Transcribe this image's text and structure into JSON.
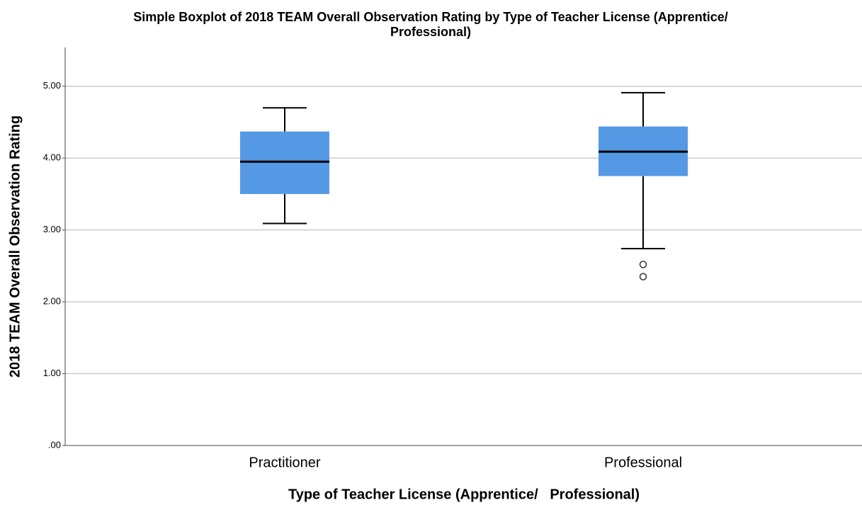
{
  "chart_data": {
    "type": "boxplot",
    "title": [
      "Simple Boxplot of 2018 TEAM Overall Observation Rating by Type of Teacher License (Apprentice/",
      "Professional)"
    ],
    "x_label": "Type of Teacher License (Apprentice/   Professional)",
    "y_label": "2018 TEAM Overall Observation Rating",
    "categories": [
      "Practitioner",
      "Professional"
    ],
    "boxes": [
      {
        "min": 3.09,
        "q1": 3.5,
        "median": 3.95,
        "q3": 4.37,
        "max": 4.7,
        "outliers": []
      },
      {
        "min": 2.74,
        "q1": 3.75,
        "median": 4.09,
        "q3": 4.44,
        "max": 4.91,
        "outliers": [
          2.52,
          2.35
        ]
      }
    ],
    "color": "#5599e5",
    "ylim": [
      0,
      5.54
    ],
    "yticks": [
      {
        "value": 0,
        "label": ".00"
      },
      {
        "value": 1,
        "label": "1.00"
      },
      {
        "value": 2,
        "label": "2.00"
      },
      {
        "value": 3,
        "label": "3.00"
      },
      {
        "value": 4,
        "label": "4.00"
      },
      {
        "value": 5,
        "label": "5.00"
      }
    ],
    "grid": true
  }
}
